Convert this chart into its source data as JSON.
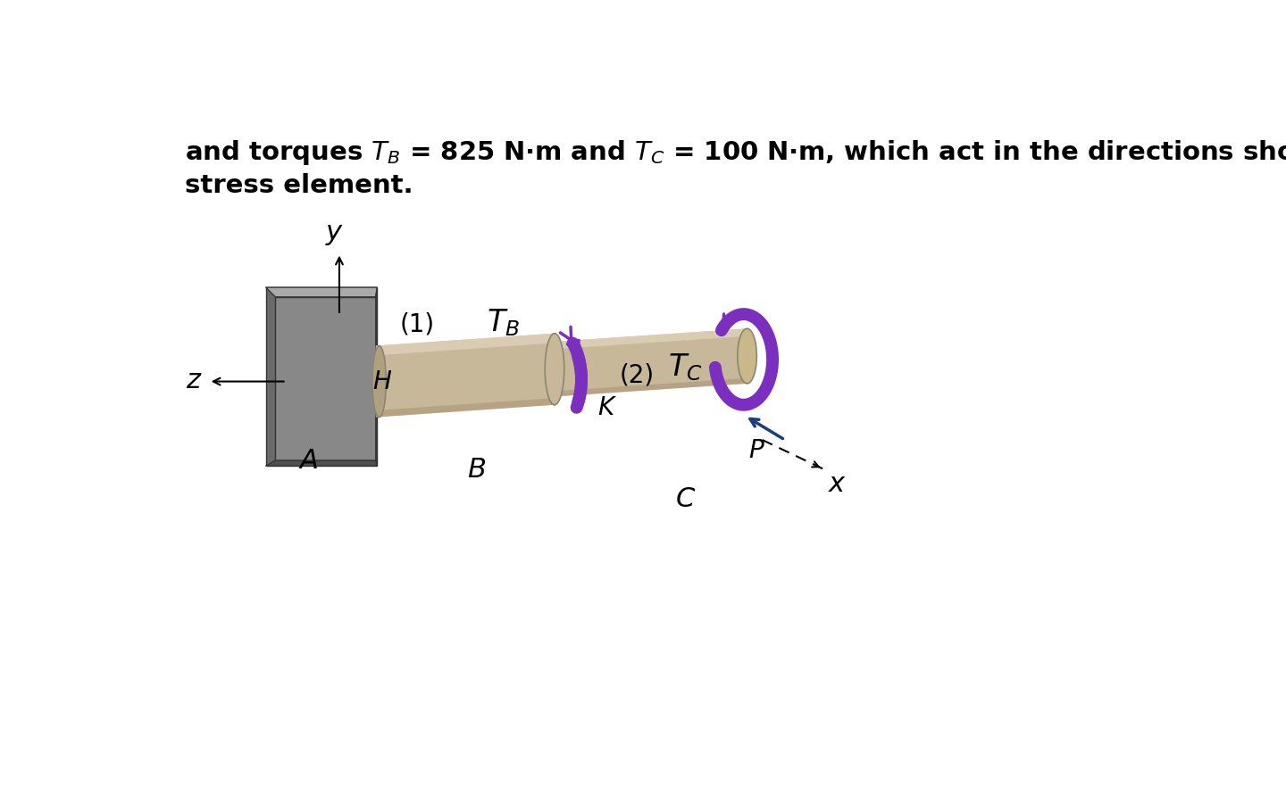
{
  "background_color": "#ffffff",
  "shaft_color": "#c8b89a",
  "shaft_color_light": "#e0d4bc",
  "shaft_color_dark": "#a89070",
  "shaft_color_side": "#b0a080",
  "wall_color_front": "#888888",
  "wall_color_side": "#606060",
  "wall_color_top": "#aaaaaa",
  "wall_color_dark": "#444444",
  "torque_arrow_color": "#7B2FBE",
  "text_color": "#000000",
  "axis_color": "#000000",
  "px_arrow_color": "#1a3f7a",
  "line1": "and torques $T_B$ = 825 N·m and $T_C$ = 100 N·m, which act in the directions shown",
  "line2": "stress element.",
  "label_H": "$H$",
  "label_K": "$K$",
  "label_B": "$B$",
  "label_A": "$A$",
  "label_1": "(1)",
  "label_2": "(2)",
  "label_TB": "$T_B$",
  "label_TC": "$T_C$",
  "label_P": "$P$",
  "label_x": "$x$",
  "label_y": "$y$",
  "label_z": "$z$",
  "label_C": "$C$"
}
